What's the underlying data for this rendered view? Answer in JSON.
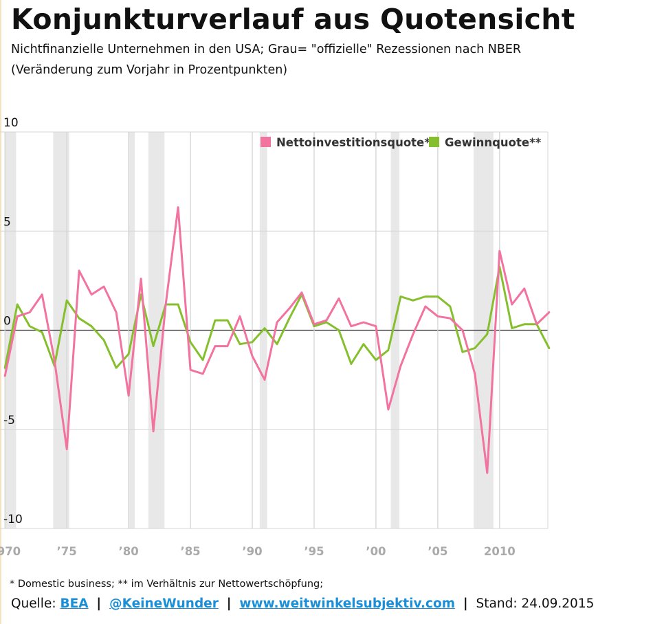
{
  "title": "Konjunkturverlauf aus Quotensicht",
  "subtitle_line1": "Nichtfinanzielle Unternehmen in den USA; Grau= \"offizielle\" Rezessionen nach NBER",
  "subtitle_line2": "(Veränderung zum Vorjahr in Prozentpunkten)",
  "footnote": "* Domestic business; ** im Verhältnis zur Nettowertschöpfung;",
  "source": {
    "prefix": "Quelle:",
    "link1": "BEA",
    "link2": "@KeineWunder",
    "link3": "www.weitwinkelsubjektiv.com",
    "separator": "|",
    "stand": "Stand: 24.09.2015"
  },
  "colors": {
    "invest": "#f272a0",
    "profit": "#86bf2e",
    "recession": "#e8e8e8",
    "grid": "#d4d4d4",
    "zero": "#333333",
    "tick": "#aaaaaa"
  },
  "chart_data": {
    "type": "line",
    "title": "Konjunkturverlauf aus Quotensicht",
    "xlabel": "",
    "ylabel": "",
    "xlim": [
      1969.6,
      2013.9
    ],
    "ylim": [
      -10,
      10
    ],
    "yticks": [
      10,
      5,
      0,
      -5,
      -10
    ],
    "ytick_labels": [
      "10",
      "5",
      "0",
      "-5",
      "-10"
    ],
    "xticks": [
      1970,
      1975,
      1980,
      1985,
      1990,
      1995,
      2000,
      2005,
      2010
    ],
    "xtick_labels": [
      "1970",
      "’75",
      "’80",
      "’85",
      "’90",
      "’95",
      "’00",
      "’05",
      "2010"
    ],
    "grid": true,
    "legend_position": "top-right",
    "recessions": [
      [
        1970.0,
        1970.9
      ],
      [
        1973.9,
        1975.2
      ],
      [
        1980.0,
        1980.5
      ],
      [
        1981.6,
        1982.9
      ],
      [
        1990.6,
        1991.2
      ],
      [
        2001.2,
        2001.9
      ],
      [
        2007.9,
        2009.5
      ]
    ],
    "x": [
      1970,
      1971,
      1972,
      1973,
      1974,
      1975,
      1976,
      1977,
      1978,
      1979,
      1980,
      1981,
      1982,
      1983,
      1984,
      1985,
      1986,
      1987,
      1988,
      1989,
      1990,
      1991,
      1992,
      1993,
      1994,
      1995,
      1996,
      1997,
      1998,
      1999,
      2000,
      2001,
      2002,
      2003,
      2004,
      2005,
      2006,
      2007,
      2008,
      2009,
      2010,
      2011,
      2012,
      2013,
      2014
    ],
    "series": [
      {
        "name": "Nettoinvestitionsquote*",
        "values": [
          -2.3,
          0.7,
          0.9,
          1.8,
          -1.5,
          -6.0,
          3.0,
          1.8,
          2.2,
          0.9,
          -3.3,
          2.6,
          -5.1,
          1.3,
          6.2,
          -2.0,
          -2.2,
          -0.8,
          -0.8,
          0.7,
          -1.3,
          -2.5,
          0.4,
          1.1,
          1.9,
          0.3,
          0.5,
          1.6,
          0.2,
          0.4,
          0.2,
          -4.0,
          -1.8,
          -0.2,
          1.2,
          0.7,
          0.6,
          0.0,
          -2.2,
          -7.2,
          4.0,
          1.3,
          2.1,
          0.3,
          0.9
        ]
      },
      {
        "name": "Gewinnquote**",
        "values": [
          -1.9,
          1.3,
          0.2,
          -0.1,
          -1.8,
          1.5,
          0.6,
          0.2,
          -0.5,
          -1.9,
          -1.2,
          1.8,
          -0.8,
          1.3,
          1.3,
          -0.6,
          -1.5,
          0.5,
          0.5,
          -0.7,
          -0.6,
          0.1,
          -0.7,
          0.6,
          1.8,
          0.2,
          0.4,
          0.0,
          -1.7,
          -0.7,
          -1.5,
          -1.0,
          1.7,
          1.5,
          1.7,
          1.7,
          1.2,
          -1.1,
          -0.9,
          -0.2,
          3.2,
          0.1,
          0.3,
          0.3,
          -0.9
        ]
      }
    ]
  }
}
